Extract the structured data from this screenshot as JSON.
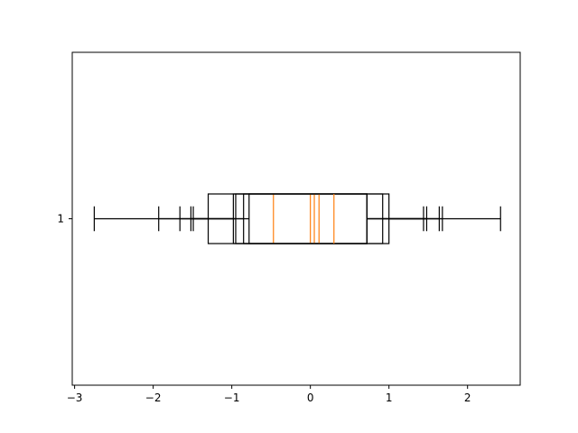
{
  "chart_data": {
    "type": "boxplot",
    "orientation": "horizontal",
    "title": "",
    "xlabel": "",
    "ylabel": "",
    "xlim": [
      -3.03,
      2.67
    ],
    "x_ticks": [
      -3,
      -2,
      -1,
      0,
      1,
      2
    ],
    "x_tick_labels": [
      "−3",
      "−2",
      "−1",
      "0",
      "1",
      "2"
    ],
    "y_ticks": [
      1
    ],
    "y_tick_labels": [
      "1"
    ],
    "grid": false,
    "box_color": "#000000",
    "median_color": "#ff7f0e",
    "boxes": [
      {
        "whisker_low": -2.75,
        "q1": -1.3,
        "median": -0.47,
        "q3": 0.72,
        "whisker_high": 2.42
      },
      {
        "whisker_low": -1.93,
        "q1": -0.98,
        "median": 0.0,
        "q3": 0.92,
        "whisker_high": 1.68
      },
      {
        "whisker_low": -1.66,
        "q1": -0.95,
        "median": 0.05,
        "q3": 1.0,
        "whisker_high": 1.64
      },
      {
        "whisker_low": -1.52,
        "q1": -0.85,
        "median": 0.11,
        "q3": 0.72,
        "whisker_high": 1.48
      },
      {
        "whisker_low": -1.49,
        "q1": -0.78,
        "median": 0.3,
        "q3": 0.72,
        "whisker_high": 1.44
      }
    ]
  }
}
